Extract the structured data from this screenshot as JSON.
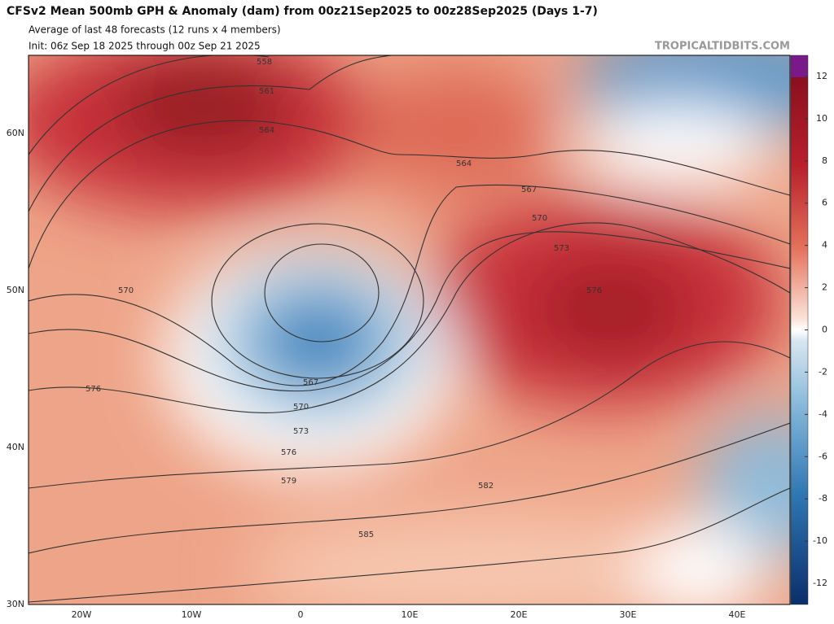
{
  "header": {
    "title": "CFSv2 Mean 500mb GPH & Anomaly (dam) from 00z21Sep2025 to 00z28Sep2025 (Days 1-7)",
    "subtitle": "Average of last 48 forecasts (12 runs x 4 members)",
    "init": "Init: 06z Sep 18 2025 through 00z Sep 21 2025",
    "watermark": "TROPICALTIDBITS.COM"
  },
  "map": {
    "lat_labels": [
      "60N",
      "50N",
      "40N",
      "30N"
    ],
    "lon_labels": [
      "20W",
      "10W",
      "0",
      "10E",
      "20E",
      "30E",
      "40E"
    ],
    "contour_labels": [
      "558",
      "561",
      "564",
      "570",
      "576",
      "567",
      "570",
      "573",
      "576",
      "579",
      "582",
      "585",
      "564",
      "567",
      "570",
      "573",
      "576"
    ]
  },
  "colorbar": {
    "lim": [
      -13,
      13
    ],
    "ticks": [
      12,
      10,
      8,
      6,
      4,
      2,
      0,
      -2,
      -4,
      -6,
      -8,
      -10,
      -12
    ]
  }
}
